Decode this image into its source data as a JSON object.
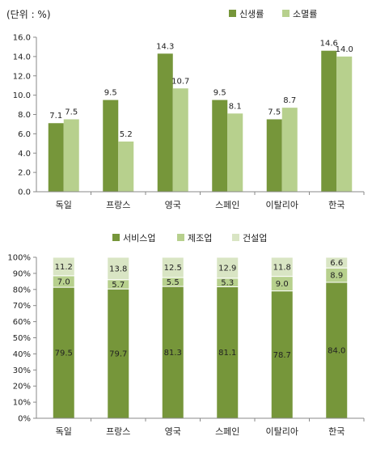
{
  "chart_data": [
    {
      "type": "bar",
      "unit_label": "(단위 : %)",
      "categories": [
        "독일",
        "프랑스",
        "영국",
        "스페인",
        "이탈리아",
        "한국"
      ],
      "series": [
        {
          "name": "신생률",
          "values": [
            7.1,
            9.5,
            14.3,
            9.5,
            7.5,
            14.6
          ],
          "color": "#76963a"
        },
        {
          "name": "소멸률",
          "values": [
            7.5,
            5.2,
            10.7,
            8.1,
            8.7,
            14.0
          ],
          "color": "#b7d08d"
        }
      ],
      "yticks": [
        "0.0",
        "2.0",
        "4.0",
        "6.0",
        "8.0",
        "10.0",
        "12.0",
        "14.0",
        "16.0"
      ],
      "ylim": [
        0,
        16
      ],
      "legend": "top-right",
      "grid": false
    },
    {
      "type": "bar",
      "stacked": true,
      "categories": [
        "독일",
        "프랑스",
        "영국",
        "스페인",
        "이탈리아",
        "한국"
      ],
      "series": [
        {
          "name": "서비스업",
          "values": [
            79.5,
            79.7,
            81.3,
            81.1,
            78.7,
            84.0
          ],
          "color": "#76963a"
        },
        {
          "name": "제조업",
          "values": [
            7.0,
            5.7,
            5.5,
            5.3,
            9.0,
            8.9
          ],
          "color": "#b7d08d"
        },
        {
          "name": "건설업",
          "values": [
            11.2,
            13.8,
            12.5,
            12.9,
            11.8,
            6.6
          ],
          "color": "#d9e5c4"
        }
      ],
      "yticks": [
        "0%",
        "10%",
        "20%",
        "30%",
        "40%",
        "50%",
        "60%",
        "70%",
        "80%",
        "90%",
        "100%"
      ],
      "ylim": [
        0,
        100
      ],
      "legend": "top",
      "grid": false
    }
  ]
}
